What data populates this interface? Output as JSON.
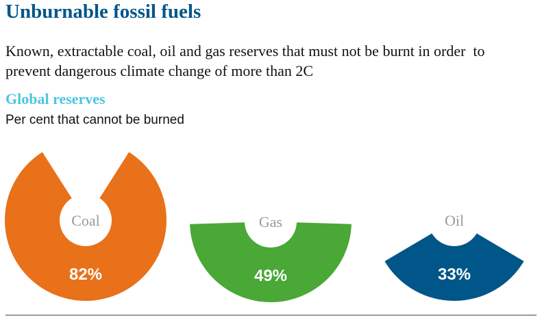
{
  "chart_data": {
    "type": "donut",
    "title": "Unburnable fossil fuels",
    "subtitle": "Known, extractable coal, oil and gas reserves that must not be burnt in order  to prevent dangerous climate change of more than 2C",
    "section_title": "Global reserves",
    "value_axis_label": "Per cent that cannot be burned",
    "categories": [
      "Coal",
      "Gas",
      "Oil"
    ],
    "values": [
      82,
      49,
      33
    ],
    "value_labels": [
      "82%",
      "49%",
      "33%"
    ],
    "colors": [
      "#e8711a",
      "#4aa836",
      "#005689"
    ]
  }
}
